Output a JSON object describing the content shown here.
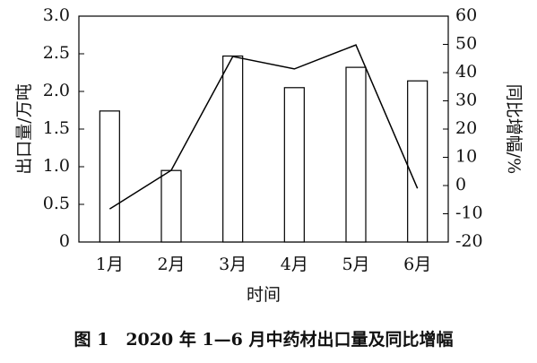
{
  "chart_data": {
    "type": "bar-line",
    "title": "图 1　2020 年 1—6 月中药材出口量及同比增幅",
    "x_label": "时间",
    "y_label": "出口量/万吨",
    "y2_label": "同比增幅/%",
    "categories": [
      "1月",
      "2月",
      "3月",
      "4月",
      "5月",
      "6月"
    ],
    "series": [
      {
        "type": "bar",
        "color": "#ffffff",
        "values": [
          1.74,
          0.95,
          2.47,
          2.05,
          2.32,
          2.14
        ]
      },
      {
        "type": "line",
        "axis": "y2",
        "color": "#000000",
        "values": [
          -8.3,
          5.4,
          45.7,
          41.3,
          49.8,
          -1
        ]
      }
    ],
    "ylim": [
      0,
      3
    ],
    "yticks": [
      0,
      0.5,
      {
        "value": 1,
        "label": "1.0"
      },
      1.5,
      {
        "value": 2,
        "label": "2.0"
      },
      2.5,
      {
        "value": 3,
        "label": "3.0"
      }
    ],
    "y2lim": [
      -20,
      60
    ],
    "y2ticks": [
      -20,
      -10,
      0,
      10,
      20,
      30,
      40,
      50,
      60
    ]
  }
}
